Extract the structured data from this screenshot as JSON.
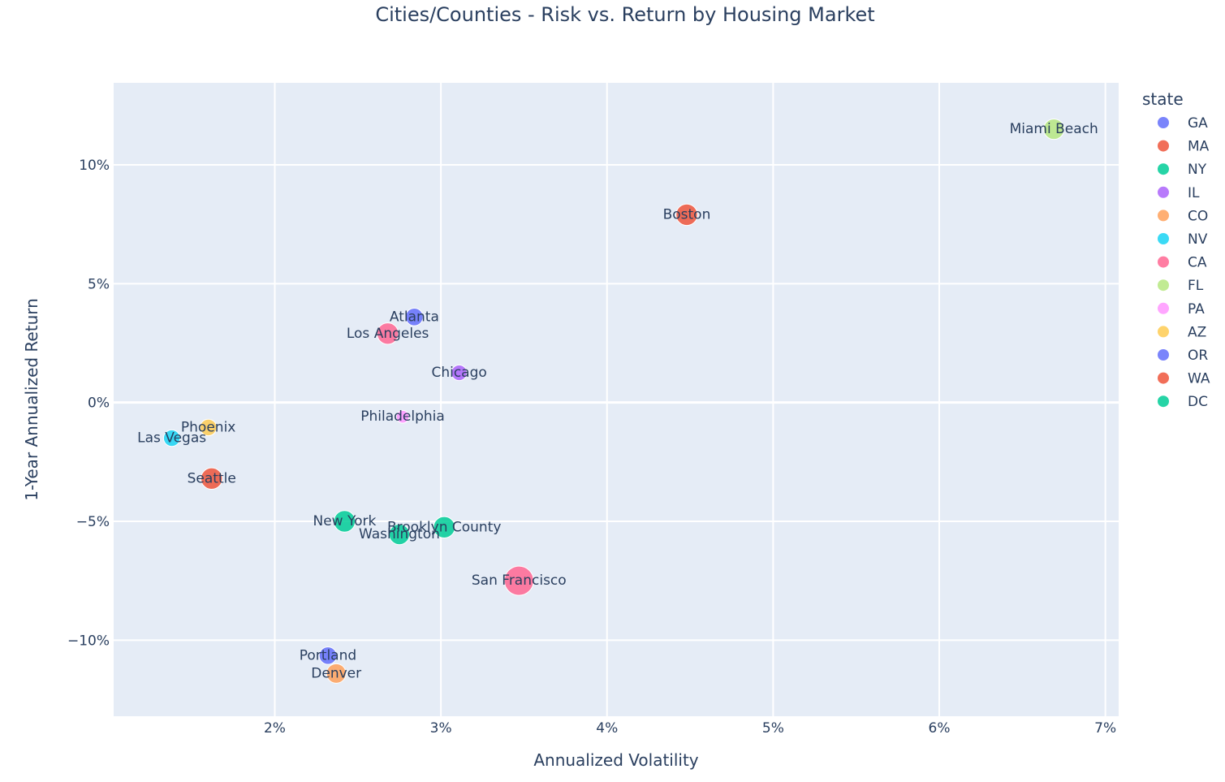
{
  "chart_data": {
    "type": "scatter",
    "title": "Cities/Counties - Risk vs. Return by Housing Market",
    "xlabel": "Annualized Volatility",
    "ylabel": "1-Year Annualized Return",
    "xlim": [
      1.03,
      7.08
    ],
    "ylim": [
      -13.2,
      13.45
    ],
    "x_ticks": [
      2,
      3,
      4,
      5,
      6,
      7
    ],
    "x_tick_labels": [
      "2%",
      "3%",
      "4%",
      "5%",
      "6%",
      "7%"
    ],
    "y_ticks": [
      10,
      5,
      0,
      -5,
      -10
    ],
    "y_tick_labels": [
      "10%",
      "5%",
      "0%",
      "−5%",
      "−10%"
    ],
    "grid": true,
    "legend": {
      "title": "state",
      "placement": "right",
      "items": [
        "GA",
        "MA",
        "NY",
        "IL",
        "CO",
        "NV",
        "CA",
        "FL",
        "PA",
        "AZ",
        "OR",
        "WA",
        "DC"
      ]
    },
    "colors": {
      "plot_bg": "#E5ECF6",
      "grid": "#ffffff",
      "GA": "#636efa",
      "MA": "#EF553B",
      "NY": "#00cc96",
      "IL": "#ab63fa",
      "CO": "#FFA15A",
      "NV": "#19d3f3",
      "CA": "#FF6692",
      "FL": "#B6E880",
      "PA": "#FF97FF",
      "AZ": "#FECB52",
      "OR": "#636efa",
      "WA": "#EF553B",
      "DC": "#00cc96"
    },
    "points": [
      {
        "label": "Miami Beach",
        "state": "FL",
        "x": 6.69,
        "y": 11.5,
        "size": 0.55
      },
      {
        "label": "Boston",
        "state": "MA",
        "x": 4.48,
        "y": 7.9,
        "size": 0.6
      },
      {
        "label": "Atlanta",
        "state": "GA",
        "x": 2.84,
        "y": 3.6,
        "size": 0.4
      },
      {
        "label": "Los Angeles",
        "state": "CA",
        "x": 2.68,
        "y": 2.9,
        "size": 0.6
      },
      {
        "label": "Chicago",
        "state": "IL",
        "x": 3.11,
        "y": 1.25,
        "size": 0.3
      },
      {
        "label": "Philadelphia",
        "state": "PA",
        "x": 2.77,
        "y": -0.6,
        "size": 0.15
      },
      {
        "label": "Phoenix",
        "state": "AZ",
        "x": 1.6,
        "y": -1.05,
        "size": 0.35
      },
      {
        "label": "Las Vegas",
        "state": "NV",
        "x": 1.38,
        "y": -1.5,
        "size": 0.35
      },
      {
        "label": "Seattle",
        "state": "WA",
        "x": 1.62,
        "y": -3.2,
        "size": 0.6
      },
      {
        "label": "New York",
        "state": "NY",
        "x": 2.42,
        "y": -5.0,
        "size": 0.6
      },
      {
        "label": "Washington",
        "state": "DC",
        "x": 2.75,
        "y": -5.55,
        "size": 0.55
      },
      {
        "label": "Brooklyn County",
        "state": "NY",
        "x": 3.02,
        "y": -5.25,
        "size": 0.6
      },
      {
        "label": "San Francisco",
        "state": "CA",
        "x": 3.47,
        "y": -7.5,
        "size": 1.0
      },
      {
        "label": "Portland",
        "state": "OR",
        "x": 2.32,
        "y": -10.65,
        "size": 0.4
      },
      {
        "label": "Denver",
        "state": "CO",
        "x": 2.37,
        "y": -11.4,
        "size": 0.5
      }
    ]
  }
}
